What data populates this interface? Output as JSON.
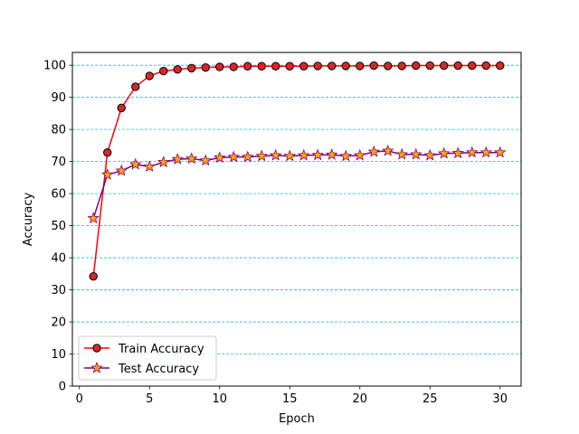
{
  "chart_data": {
    "type": "line",
    "title": "",
    "xlabel": "Epoch",
    "ylabel": "Accuracy",
    "xlim": [
      -0.5,
      31.5
    ],
    "ylim": [
      0,
      104
    ],
    "xticks": [
      0,
      5,
      10,
      15,
      20,
      25,
      30
    ],
    "yticks": [
      0,
      10,
      20,
      30,
      40,
      50,
      60,
      70,
      80,
      90,
      100
    ],
    "grid": {
      "axis": "y",
      "style": "dashed",
      "color": "#17becf"
    },
    "legend_position": "lower-left",
    "x": [
      1,
      2,
      3,
      4,
      5,
      6,
      7,
      8,
      9,
      10,
      11,
      12,
      13,
      14,
      15,
      16,
      17,
      18,
      19,
      20,
      21,
      22,
      23,
      24,
      25,
      26,
      27,
      28,
      29,
      30
    ],
    "series": [
      {
        "name": "Train Accuracy",
        "color": "#ff0000",
        "marker": "circle",
        "marker_fill": "#d62728",
        "values": [
          34.2,
          72.8,
          86.7,
          93.3,
          96.7,
          98.2,
          98.7,
          99.1,
          99.3,
          99.5,
          99.5,
          99.7,
          99.7,
          99.7,
          99.7,
          99.7,
          99.8,
          99.8,
          99.8,
          99.8,
          99.9,
          99.8,
          99.8,
          99.9,
          99.9,
          99.9,
          99.9,
          99.9,
          99.9,
          99.9
        ]
      },
      {
        "name": "Test Accuracy",
        "color": "#800080",
        "marker": "star",
        "marker_fill": "#ffa500",
        "values": [
          52.3,
          65.9,
          67.1,
          69.1,
          68.4,
          69.8,
          70.7,
          70.9,
          70.3,
          71.2,
          71.4,
          71.4,
          71.7,
          71.9,
          71.7,
          71.9,
          72.0,
          72.1,
          71.7,
          71.9,
          73.0,
          73.3,
          72.2,
          72.2,
          71.9,
          72.5,
          72.6,
          72.8,
          72.8,
          72.8
        ]
      }
    ]
  }
}
